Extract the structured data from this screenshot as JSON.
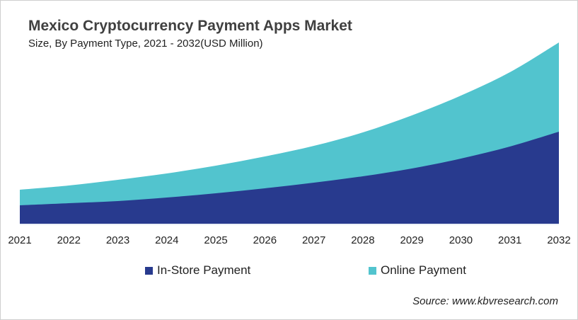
{
  "chart_data": {
    "type": "area",
    "stacked": true,
    "title": "Mexico Cryptocurrency Payment Apps Market",
    "subtitle": "Size, By Payment Type, 2021 - 2032(USD Million)",
    "categories": [
      "2021",
      "2022",
      "2023",
      "2024",
      "2025",
      "2026",
      "2027",
      "2028",
      "2029",
      "2030",
      "2031",
      "2032"
    ],
    "series": [
      {
        "name": "In-Store Payment",
        "color": "#283a8e",
        "values": [
          26,
          29,
          32,
          37,
          43,
          50,
          58,
          67,
          78,
          92,
          109,
          130
        ]
      },
      {
        "name": "Online Payment",
        "color": "#52c4ce",
        "values": [
          22,
          25,
          30,
          34,
          39,
          45,
          52,
          62,
          75,
          89,
          105,
          126
        ]
      }
    ],
    "ylim": [
      0,
      260
    ],
    "y_axis_shown": false,
    "grid": false,
    "legend": "bottom",
    "source": "Source: www.kbvresearch.com"
  }
}
